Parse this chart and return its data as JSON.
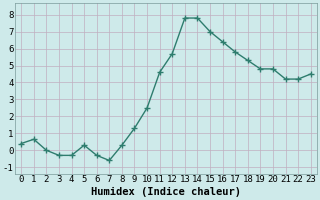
{
  "x": [
    0,
    1,
    2,
    3,
    4,
    5,
    6,
    7,
    8,
    9,
    10,
    11,
    12,
    13,
    14,
    15,
    16,
    17,
    18,
    19,
    20,
    21,
    22,
    23
  ],
  "y": [
    0.4,
    0.65,
    0.0,
    -0.3,
    -0.3,
    0.3,
    -0.3,
    -0.6,
    0.3,
    1.3,
    2.5,
    4.6,
    5.7,
    7.8,
    7.8,
    7.0,
    6.4,
    5.8,
    5.3,
    4.8,
    4.8,
    4.2,
    4.2,
    4.5
  ],
  "line_color": "#2e7d6e",
  "marker": "+",
  "marker_size": 4,
  "line_width": 1.0,
  "bg_color": "#ceeaea",
  "grid_color": "#c0afc0",
  "xlabel": "Humidex (Indice chaleur)",
  "xlabel_fontsize": 7.5,
  "yticks": [
    -1,
    0,
    1,
    2,
    3,
    4,
    5,
    6,
    7,
    8
  ],
  "ylim": [
    -1.4,
    8.7
  ],
  "xlim": [
    -0.5,
    23.5
  ],
  "tick_fontsize": 6.5,
  "xlabel_fontweight": "bold"
}
